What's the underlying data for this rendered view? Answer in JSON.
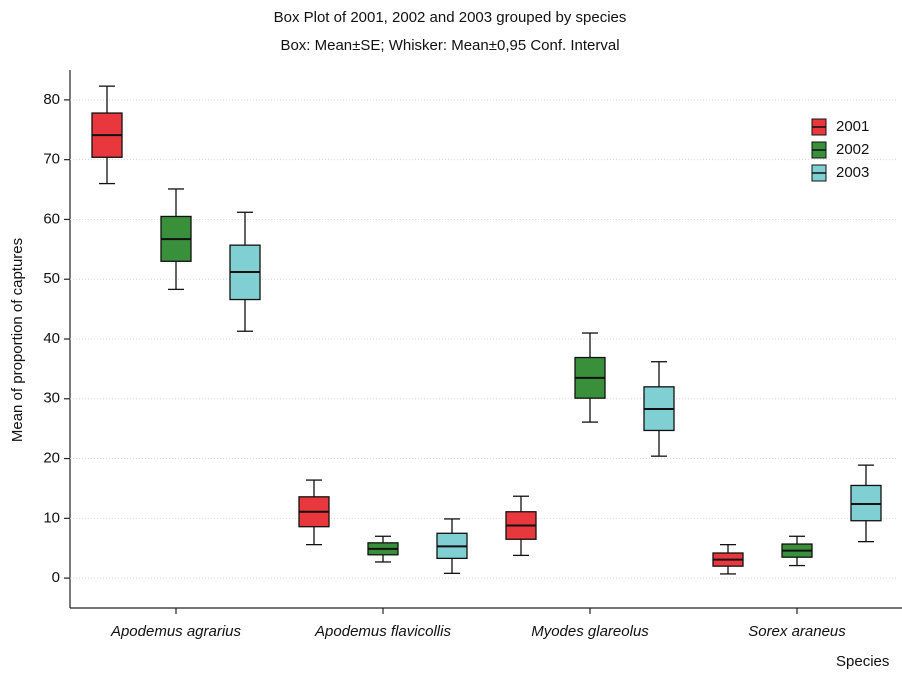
{
  "chart_data": {
    "type": "box",
    "title": "Box Plot of 2001, 2002 and 2003 grouped by species",
    "subtitle": "Box: Mean±SE; Whisker: Mean±0,95 Conf. Interval",
    "y_label": "Mean of proportion of captures",
    "x_label": "Species",
    "categories": [
      "Apodemus agrarius",
      "Apodemus flavicollis",
      "Myodes glareolus",
      "Sorex araneus"
    ],
    "series": [
      {
        "name": "2001",
        "color": "#e8383d",
        "mean": [
          74.1,
          11.1,
          8.8,
          3.1
        ],
        "box_low": [
          70.4,
          8.6,
          6.5,
          2.0
        ],
        "box_high": [
          77.8,
          13.6,
          11.1,
          4.2
        ],
        "whisker_low": [
          66.0,
          5.6,
          3.8,
          0.7
        ],
        "whisker_high": [
          82.3,
          16.4,
          13.7,
          5.6
        ]
      },
      {
        "name": "2002",
        "color": "#3a8f3a",
        "mean": [
          56.7,
          4.9,
          33.5,
          4.6
        ],
        "box_low": [
          53.0,
          3.9,
          30.1,
          3.5
        ],
        "box_high": [
          60.5,
          5.9,
          36.9,
          5.7
        ],
        "whisker_low": [
          48.3,
          2.7,
          26.1,
          2.1
        ],
        "whisker_high": [
          65.1,
          7.0,
          41.0,
          7.0
        ]
      },
      {
        "name": "2003",
        "color": "#7fcfd3",
        "mean": [
          51.2,
          5.3,
          28.3,
          12.4
        ],
        "box_low": [
          46.6,
          3.3,
          24.7,
          9.6
        ],
        "box_high": [
          55.7,
          7.5,
          32.0,
          15.5
        ],
        "whisker_low": [
          41.3,
          0.8,
          20.4,
          6.1
        ],
        "whisker_high": [
          61.2,
          9.9,
          36.2,
          18.9
        ]
      }
    ],
    "ylim": [
      -5,
      85
    ],
    "yticks": [
      0,
      10,
      20,
      30,
      40,
      50,
      60,
      70,
      80
    ],
    "grid": true,
    "legend": "upper-right"
  }
}
